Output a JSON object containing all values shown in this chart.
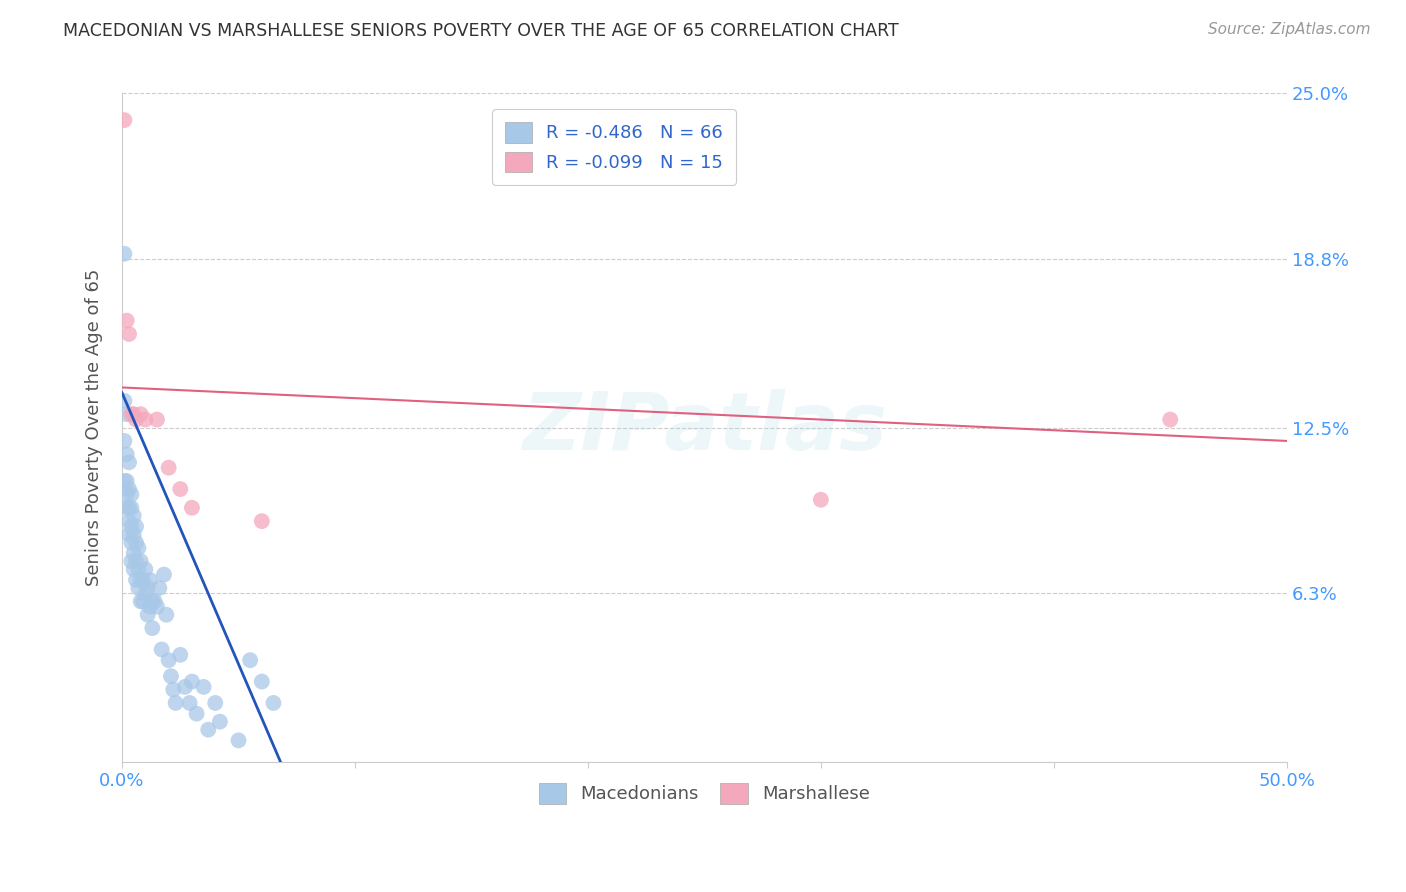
{
  "title": "MACEDONIAN VS MARSHALLESE SENIORS POVERTY OVER THE AGE OF 65 CORRELATION CHART",
  "source": "Source: ZipAtlas.com",
  "ylabel": "Seniors Poverty Over the Age of 65",
  "xlim": [
    0.0,
    0.5
  ],
  "ylim": [
    0.0,
    0.25
  ],
  "xtick_positions": [
    0.0,
    0.1,
    0.2,
    0.3,
    0.4,
    0.5
  ],
  "xticklabels": [
    "0.0%",
    "",
    "",
    "",
    "",
    "50.0%"
  ],
  "ytick_positions": [
    0.0,
    0.063,
    0.125,
    0.188,
    0.25
  ],
  "ytick_labels_right": [
    "",
    "6.3%",
    "12.5%",
    "18.8%",
    "25.0%"
  ],
  "macedonian_color": "#a8c8e8",
  "marshallese_color": "#f4a8bc",
  "macedonian_line_color": "#2255bb",
  "marshallese_line_color": "#e06080",
  "legend_line1": "R = -0.486   N = 66",
  "legend_line2": "R = -0.099   N = 15",
  "background_color": "#ffffff",
  "grid_color": "#cccccc",
  "title_color": "#333333",
  "axis_label_color": "#555555",
  "tick_color": "#4499ff",
  "watermark": "ZIPatlas",
  "macedonian_x": [
    0.001,
    0.001,
    0.001,
    0.001,
    0.002,
    0.002,
    0.002,
    0.002,
    0.002,
    0.003,
    0.003,
    0.003,
    0.003,
    0.003,
    0.004,
    0.004,
    0.004,
    0.004,
    0.004,
    0.005,
    0.005,
    0.005,
    0.005,
    0.006,
    0.006,
    0.006,
    0.006,
    0.007,
    0.007,
    0.007,
    0.008,
    0.008,
    0.008,
    0.009,
    0.009,
    0.01,
    0.01,
    0.011,
    0.011,
    0.012,
    0.012,
    0.013,
    0.013,
    0.014,
    0.015,
    0.016,
    0.017,
    0.018,
    0.019,
    0.02,
    0.021,
    0.022,
    0.023,
    0.025,
    0.027,
    0.029,
    0.03,
    0.032,
    0.035,
    0.037,
    0.04,
    0.042,
    0.05,
    0.055,
    0.06,
    0.065
  ],
  "macedonian_y": [
    0.19,
    0.135,
    0.12,
    0.105,
    0.13,
    0.115,
    0.105,
    0.1,
    0.095,
    0.112,
    0.102,
    0.095,
    0.09,
    0.085,
    0.1,
    0.095,
    0.088,
    0.082,
    0.075,
    0.092,
    0.085,
    0.078,
    0.072,
    0.088,
    0.082,
    0.075,
    0.068,
    0.08,
    0.072,
    0.065,
    0.075,
    0.068,
    0.06,
    0.068,
    0.06,
    0.072,
    0.063,
    0.065,
    0.055,
    0.068,
    0.058,
    0.06,
    0.05,
    0.06,
    0.058,
    0.065,
    0.042,
    0.07,
    0.055,
    0.038,
    0.032,
    0.027,
    0.022,
    0.04,
    0.028,
    0.022,
    0.03,
    0.018,
    0.028,
    0.012,
    0.022,
    0.015,
    0.008,
    0.038,
    0.03,
    0.022
  ],
  "marshallese_x": [
    0.001,
    0.002,
    0.003,
    0.004,
    0.005,
    0.006,
    0.008,
    0.01,
    0.015,
    0.02,
    0.025,
    0.03,
    0.06,
    0.3,
    0.45
  ],
  "marshallese_y": [
    0.24,
    0.165,
    0.16,
    0.13,
    0.13,
    0.128,
    0.13,
    0.128,
    0.128,
    0.11,
    0.102,
    0.095,
    0.09,
    0.098,
    0.128
  ],
  "mac_trend_x": [
    0.0,
    0.068
  ],
  "mac_trend_y": [
    0.138,
    0.0
  ],
  "mar_trend_x": [
    0.0,
    0.5
  ],
  "mar_trend_y": [
    0.14,
    0.12
  ]
}
